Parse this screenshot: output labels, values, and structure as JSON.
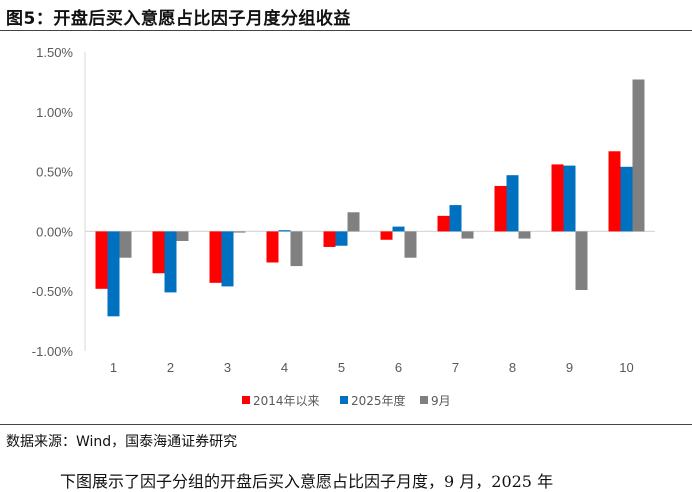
{
  "figure": {
    "title": "图5：开盘后买入意愿占比因子月度分组收益",
    "source": "数据来源：Wind，国泰海通证券研究",
    "body_text": "下图展示了因子分组的开盘后买入意愿占比因子月度，9 月，2025 年"
  },
  "colors": {
    "series_2014": "#ff0000",
    "series_2025": "#0070c0",
    "series_sep": "#808080",
    "axis": "#d9d9d9",
    "tick_text": "#595959"
  },
  "chart_data": {
    "type": "bar",
    "categories": [
      "1",
      "2",
      "3",
      "4",
      "5",
      "6",
      "7",
      "8",
      "9",
      "10"
    ],
    "series": [
      {
        "name": "2014年以来",
        "color": "#ff0000",
        "values": [
          -0.48,
          -0.35,
          -0.43,
          -0.26,
          -0.13,
          -0.07,
          0.13,
          0.38,
          0.56,
          0.67
        ]
      },
      {
        "name": "2025年度",
        "color": "#0070c0",
        "values": [
          -0.71,
          -0.51,
          -0.46,
          0.01,
          -0.12,
          0.04,
          0.22,
          0.47,
          0.55,
          0.54
        ]
      },
      {
        "name": "9月",
        "color": "#808080",
        "values": [
          -0.22,
          -0.08,
          -0.01,
          -0.29,
          0.16,
          -0.22,
          -0.06,
          -0.06,
          -0.49,
          1.27
        ]
      }
    ],
    "y_ticks": [
      "1.50%",
      "1.00%",
      "0.50%",
      "0.00%",
      "-0.50%",
      "-1.00%"
    ],
    "y_tick_values": [
      1.5,
      1.0,
      0.5,
      0.0,
      -0.5,
      -1.0
    ],
    "ylim": [
      -1.0,
      1.5
    ],
    "xlabel": "",
    "ylabel": "",
    "legend_position": "bottom-center",
    "grid": false
  }
}
